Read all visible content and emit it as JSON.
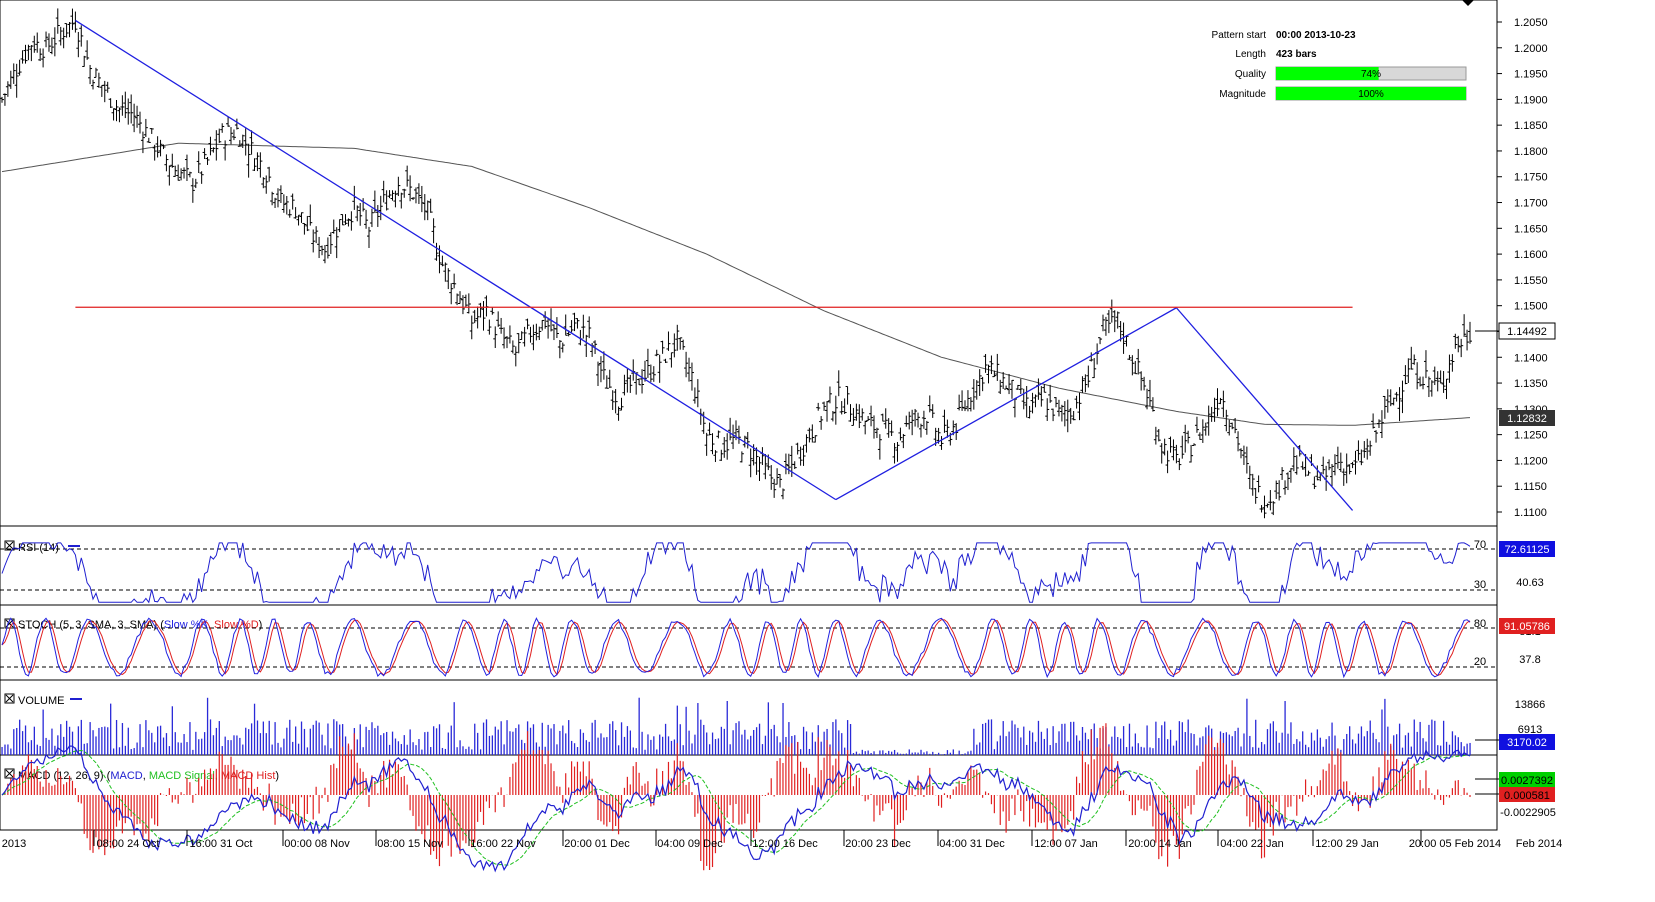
{
  "info_panel": {
    "pattern_start_label": "Pattern start",
    "pattern_start_value": "00:00 2013-10-23",
    "length_label": "Length",
    "length_value": "423 bars",
    "quality_label": "Quality",
    "quality_value": "74%",
    "quality_fraction": 0.74,
    "magnitude_label": "Magnitude",
    "magnitude_value": "100%",
    "magnitude_fraction": 1.0
  },
  "colors": {
    "price_bars": "#000000",
    "pattern_lines": "#1f1fe0",
    "resistance_line": "#e02020",
    "moving_average": "#555555",
    "rsi_line": "#2020d0",
    "stoch_k": "#2020e0",
    "stoch_d": "#e02020",
    "volume_bars": "#2a2ad8",
    "macd_line": "#2020d0",
    "macd_signal": "#20c020",
    "macd_hist": "#e02020",
    "progress_fill": "#00ff00",
    "value_box_dark": "#333333",
    "value_box_blue": "#1010e0"
  },
  "price_pane": {
    "y_ticks": [
      "1.2050",
      "1.2000",
      "1.1950",
      "1.1900",
      "1.1850",
      "1.1800",
      "1.1750",
      "1.1700",
      "1.1650",
      "1.1600",
      "1.1550",
      "1.1500",
      "1.1450",
      "1.1400",
      "1.1350",
      "1.1300",
      "1.1250",
      "1.1200",
      "1.1150",
      "1.1100"
    ],
    "last_price_label": "1.14492",
    "ma_label": "1.12832"
  },
  "rsi_pane": {
    "label": "RSI (14)",
    "level_high": "70",
    "level_low": "30",
    "current_value": "72.61125",
    "mid_tick": "40.63"
  },
  "stoch_pane": {
    "label_prefix": "STOCH (5, 3, SMA, 3, SMA) (",
    "label_k": "Slow %K",
    "label_sep": ", ",
    "label_d": "Slow %D",
    "label_suffix": ")",
    "level_high": "80",
    "level_low": "20",
    "tick_mid": "37.8",
    "tick_high_partial": "81.1",
    "current_value": "91.05786"
  },
  "volume_pane": {
    "label": "VOLUME",
    "tick_high": "13866",
    "tick_mid": "6913",
    "current_value": "3170.02"
  },
  "macd_pane": {
    "label_prefix": "MACD (12, 26, 9) (",
    "label_macd": "MACD",
    "label_sep1": ", ",
    "label_signal": "MACD Signal",
    "label_sep2": ", ",
    "label_hist": "MACD Hist",
    "label_suffix": ")",
    "value_signal": "0.0027392",
    "value_hist": "0.000581",
    "tick_low": "-0.0022905"
  },
  "x_axis": {
    "labels": [
      "2013",
      "08:00 24 Oct",
      "16:00 31 Oct",
      "00:00 08 Nov",
      "08:00 15 Nov",
      "16:00 22 Nov",
      "20:00 01 Dec",
      "04:00 09 Dec",
      "12:00 16 Dec",
      "20:00 23 Dec",
      "04:00 31 Dec",
      "12:00 07 Jan",
      "20:00 14 Jan",
      "04:00 22 Jan",
      "12:00 29 Jan",
      "20:00 05 Feb 2014",
      "Feb 2014"
    ]
  },
  "chart_data": {
    "type": "line",
    "title": "",
    "xlabel": "",
    "ylabel": "",
    "ylim": [
      1.108,
      1.2075
    ],
    "pattern": {
      "points": [
        {
          "x": "2013-10-23",
          "y": 1.2053
        },
        {
          "x": "2013-12-17",
          "y": 1.1124
        },
        {
          "x": "2014-01-08",
          "y": 1.1496
        },
        {
          "x": "2014-01-23",
          "y": 1.1103
        }
      ],
      "resistance_level": 1.1497
    },
    "close_series": [
      [
        0,
        1.19
      ],
      [
        5,
        1.196
      ],
      [
        10,
        1.201
      ],
      [
        15,
        1.2
      ],
      [
        20,
        1.203
      ],
      [
        25,
        1.2053
      ],
      [
        30,
        1.196
      ],
      [
        35,
        1.192
      ],
      [
        40,
        1.188
      ],
      [
        45,
        1.187
      ],
      [
        50,
        1.183
      ],
      [
        55,
        1.179
      ],
      [
        60,
        1.176
      ],
      [
        65,
        1.174
      ],
      [
        70,
        1.178
      ],
      [
        75,
        1.183
      ],
      [
        80,
        1.184
      ],
      [
        85,
        1.18
      ],
      [
        90,
        1.176
      ],
      [
        95,
        1.17
      ],
      [
        100,
        1.169
      ],
      [
        105,
        1.164
      ],
      [
        110,
        1.161
      ],
      [
        115,
        1.166
      ],
      [
        120,
        1.169
      ],
      [
        125,
        1.165
      ],
      [
        130,
        1.17
      ],
      [
        135,
        1.174
      ],
      [
        140,
        1.172
      ],
      [
        145,
        1.168
      ],
      [
        150,
        1.158
      ],
      [
        155,
        1.153
      ],
      [
        160,
        1.147
      ],
      [
        165,
        1.149
      ],
      [
        170,
        1.144
      ],
      [
        175,
        1.141
      ],
      [
        180,
        1.145
      ],
      [
        185,
        1.147
      ],
      [
        190,
        1.143
      ],
      [
        195,
        1.146
      ],
      [
        200,
        1.144
      ],
      [
        205,
        1.136
      ],
      [
        210,
        1.132
      ],
      [
        215,
        1.135
      ],
      [
        220,
        1.137
      ],
      [
        225,
        1.14
      ],
      [
        230,
        1.143
      ],
      [
        235,
        1.136
      ],
      [
        240,
        1.125
      ],
      [
        245,
        1.123
      ],
      [
        250,
        1.124
      ],
      [
        255,
        1.122
      ],
      [
        260,
        1.118
      ],
      [
        265,
        1.115
      ],
      [
        270,
        1.12
      ],
      [
        275,
        1.125
      ],
      [
        280,
        1.13
      ],
      [
        285,
        1.132
      ],
      [
        290,
        1.13
      ],
      [
        295,
        1.127
      ],
      [
        300,
        1.126
      ],
      [
        305,
        1.124
      ],
      [
        310,
        1.128
      ],
      [
        315,
        1.129
      ],
      [
        320,
        1.124
      ],
      [
        325,
        1.127
      ],
      [
        330,
        1.133
      ],
      [
        335,
        1.138
      ],
      [
        340,
        1.136
      ],
      [
        345,
        1.133
      ],
      [
        350,
        1.13
      ],
      [
        355,
        1.132
      ],
      [
        360,
        1.129
      ],
      [
        365,
        1.13
      ],
      [
        370,
        1.136
      ],
      [
        375,
        1.145
      ],
      [
        380,
        1.147
      ],
      [
        385,
        1.14
      ],
      [
        390,
        1.133
      ],
      [
        395,
        1.123
      ],
      [
        400,
        1.12
      ],
      [
        405,
        1.123
      ],
      [
        410,
        1.127
      ],
      [
        415,
        1.133
      ],
      [
        420,
        1.126
      ],
      [
        425,
        1.116
      ],
      [
        430,
        1.112
      ],
      [
        435,
        1.115
      ],
      [
        440,
        1.12
      ],
      [
        445,
        1.118
      ],
      [
        450,
        1.116
      ],
      [
        455,
        1.12
      ],
      [
        460,
        1.118
      ],
      [
        465,
        1.122
      ],
      [
        470,
        1.128
      ],
      [
        475,
        1.133
      ],
      [
        480,
        1.138
      ],
      [
        485,
        1.136
      ],
      [
        490,
        1.134
      ],
      [
        495,
        1.142
      ],
      [
        500,
        1.1449
      ]
    ],
    "moving_average": [
      [
        0,
        1.176
      ],
      [
        60,
        1.1815
      ],
      [
        120,
        1.1805
      ],
      [
        160,
        1.177
      ],
      [
        200,
        1.169
      ],
      [
        240,
        1.16
      ],
      [
        280,
        1.149
      ],
      [
        320,
        1.14
      ],
      [
        360,
        1.134
      ],
      [
        400,
        1.1295
      ],
      [
        430,
        1.127
      ],
      [
        460,
        1.1268
      ],
      [
        500,
        1.1283
      ]
    ],
    "indicators": {
      "rsi_14_last": 72.61125,
      "stoch_last": 91.05786,
      "volume_last": 3170.02,
      "macd_signal_last": 0.0027392,
      "macd_hist_last": 0.000581
    }
  }
}
